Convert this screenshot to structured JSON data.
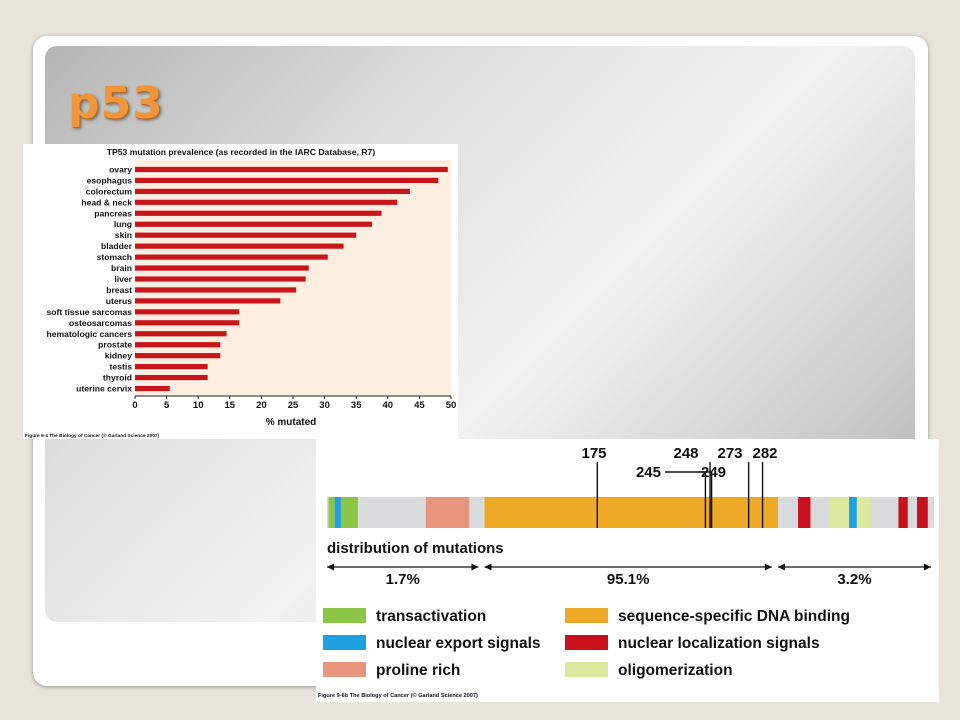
{
  "slide": {
    "title": "p53"
  },
  "chart_data": [
    {
      "type": "bar",
      "orientation": "horizontal",
      "title": "TP53 mutation prevalence (as recorded in the IARC Database, R7)",
      "xlabel": "% mutated",
      "ylabel": "",
      "xlim": [
        0,
        50
      ],
      "x_ticks": [
        0,
        5,
        10,
        15,
        20,
        25,
        30,
        35,
        40,
        45,
        50
      ],
      "categories": [
        "ovary",
        "esophagus",
        "colorectum",
        "head & neck",
        "pancreas",
        "lung",
        "skin",
        "bladder",
        "stomach",
        "brain",
        "liver",
        "breast",
        "uterus",
        "soft tissue sarcomas",
        "osteosarcomas",
        "hematologic cancers",
        "prostate",
        "kidney",
        "testis",
        "thyroid",
        "uterine cervix"
      ],
      "values": [
        49.5,
        48,
        43.5,
        41.5,
        39,
        37.5,
        35,
        33,
        30.5,
        27.5,
        27,
        25.5,
        23,
        16.5,
        16.5,
        14.5,
        13.5,
        13.5,
        11.5,
        11.5,
        5.5
      ],
      "colors": {
        "bar": "#c8151b",
        "plot_bg": "#fdeee2"
      },
      "caption": "Figure 9-4  The Biology of Cancer (© Garland Science 2007)"
    },
    {
      "type": "diagram-bar",
      "title": "distribution of mutations",
      "hotspots": [
        {
          "label": "175",
          "pos": 175
        },
        {
          "label": "245",
          "pos": 245
        },
        {
          "label": "248",
          "pos": 248
        },
        {
          "label": "249",
          "pos": 249
        },
        {
          "label": "273",
          "pos": 273
        },
        {
          "label": "282",
          "pos": 282
        }
      ],
      "protein_length": 393,
      "regions": [
        {
          "label": "transactivation",
          "start": 1,
          "end": 5,
          "color": "#8cc444"
        },
        {
          "label": "nuclear export signals",
          "start": 5,
          "end": 9,
          "color": "#1ea0e0"
        },
        {
          "label": "transactivation",
          "start": 9,
          "end": 20,
          "color": "#8cc444"
        },
        {
          "label": "proline rich",
          "start": 64,
          "end": 92,
          "color": "#e8957d"
        },
        {
          "label": "sequence-specific DNA binding",
          "start": 102,
          "end": 292,
          "color": "#eea926"
        },
        {
          "label": "nuclear localization signals",
          "start": 305,
          "end": 313,
          "color": "#c8111c"
        },
        {
          "label": "oligomerization",
          "start": 325,
          "end": 352,
          "color": "#dce89e"
        },
        {
          "label": "nuclear export signals",
          "start": 338,
          "end": 343,
          "color": "#1ea0e0"
        },
        {
          "label": "nuclear localization signals",
          "start": 370,
          "end": 376,
          "color": "#c8111c"
        },
        {
          "label": "nuclear localization signals",
          "start": 382,
          "end": 389,
          "color": "#c8111c"
        }
      ],
      "segments": [
        {
          "label": "1.7%",
          "start": 0,
          "end": 100
        },
        {
          "label": "95.1%",
          "start": 100,
          "end": 290
        },
        {
          "label": "3.2%",
          "start": 290,
          "end": 393
        }
      ],
      "legend": [
        {
          "label": "transactivation",
          "color": "#8cc444"
        },
        {
          "label": "sequence-specific DNA binding",
          "color": "#eea926"
        },
        {
          "label": "nuclear export signals",
          "color": "#1ea0e0"
        },
        {
          "label": "nuclear localization signals",
          "color": "#c8111c"
        },
        {
          "label": "proline rich",
          "color": "#e8957d"
        },
        {
          "label": "oligomerization",
          "color": "#dce89e"
        }
      ],
      "caption": "Figure 9-6b  The Biology of Cancer (© Garland Science 2007)"
    }
  ]
}
